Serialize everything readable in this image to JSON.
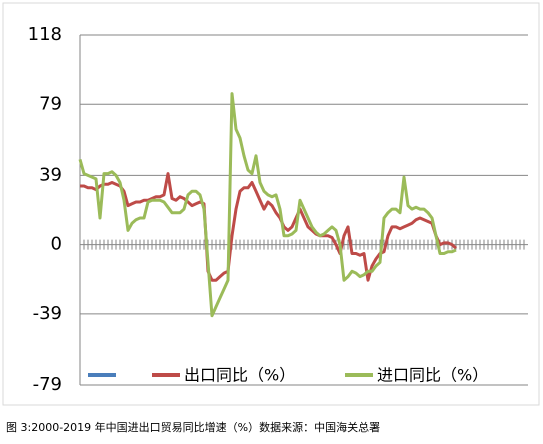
{
  "chart_data": {
    "type": "line",
    "caption": "图 3:2000-2019 年中国进出口贸易同比增速（%）数据来源：中国海关总署",
    "categories": [
      null,
      null,
      null,
      null,
      null,
      null,
      null,
      null,
      null,
      null,
      null,
      null,
      null,
      null,
      null,
      null,
      null,
      null,
      null,
      null,
      null,
      null,
      null,
      null,
      null,
      null,
      null,
      null,
      null,
      null,
      null,
      null,
      null,
      null,
      null,
      null,
      null,
      null,
      null,
      null,
      null,
      null,
      null,
      null,
      null,
      null,
      null,
      null,
      null,
      null,
      null,
      null,
      null,
      null,
      null,
      null,
      null,
      null,
      null,
      null,
      null,
      null,
      null,
      null,
      null,
      null,
      null,
      null,
      null,
      null,
      null,
      null,
      null,
      null,
      null,
      null,
      null,
      null,
      null,
      null,
      null,
      null,
      null,
      null,
      null,
      null,
      null,
      null,
      null,
      null,
      null,
      null,
      null,
      null,
      null,
      null,
      null,
      null,
      null,
      null,
      null,
      null,
      null,
      null,
      null,
      null,
      null,
      null,
      null,
      null,
      null,
      null
    ],
    "series": [
      {
        "name": "出口同比（%）",
        "color": "#be4b48",
        "values": [
          33,
          33,
          32,
          32,
          31,
          33,
          34,
          34,
          35,
          34,
          33,
          30,
          22,
          23,
          24,
          24,
          25,
          25,
          26,
          27,
          27,
          28,
          40,
          26,
          25,
          27,
          26,
          24,
          22,
          23,
          24,
          23,
          -15,
          -20,
          -20,
          -18,
          -16,
          -15,
          5,
          20,
          30,
          32,
          32,
          35,
          30,
          25,
          20,
          24,
          22,
          18,
          15,
          10,
          8,
          10,
          15,
          20,
          15,
          10,
          8,
          6,
          5,
          5,
          5,
          4,
          0,
          -5,
          5,
          10,
          -5,
          -5,
          -6,
          -5,
          -20,
          -12,
          -8,
          -5,
          -4,
          5,
          10,
          10,
          9,
          10,
          11,
          12,
          14,
          15,
          14,
          13,
          12,
          5,
          0,
          1,
          1,
          0,
          -2,
          null,
          null,
          null,
          null,
          null,
          null,
          null,
          null,
          null,
          null,
          null,
          null,
          null,
          null,
          null,
          null,
          null
        ]
      },
      {
        "name": "进口同比（%）",
        "color": "#9bbb59",
        "values": [
          48,
          40,
          39,
          38,
          37,
          15,
          40,
          40,
          41,
          39,
          35,
          25,
          8,
          12,
          14,
          15,
          15,
          24,
          25,
          25,
          25,
          24,
          21,
          18,
          18,
          18,
          20,
          28,
          30,
          30,
          28,
          20,
          -10,
          -40,
          -35,
          -30,
          -25,
          -20,
          85,
          65,
          60,
          50,
          42,
          40,
          50,
          35,
          30,
          28,
          27,
          28,
          20,
          5,
          5,
          6,
          8,
          25,
          20,
          15,
          10,
          7,
          5,
          6,
          8,
          10,
          8,
          0,
          -20,
          -18,
          -15,
          -16,
          -18,
          -17,
          -15,
          -15,
          -12,
          -10,
          15,
          18,
          20,
          20,
          18,
          38,
          22,
          20,
          21,
          20,
          20,
          18,
          15,
          5,
          -5,
          -5,
          -4,
          -4,
          -3,
          null,
          null,
          null,
          null,
          null,
          null,
          null,
          null,
          null,
          null,
          null,
          null,
          null,
          null,
          null,
          null,
          null
        ]
      }
    ],
    "ylim": [
      -79,
      118
    ],
    "yticks": [
      -79,
      -39,
      0,
      39,
      79,
      118
    ],
    "grid": true
  }
}
